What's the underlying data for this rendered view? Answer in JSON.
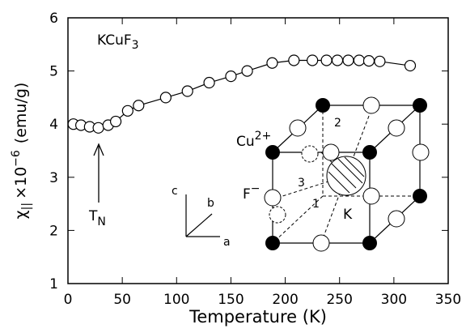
{
  "chart_data": {
    "type": "line",
    "xlabel": "Temperature (K)",
    "ylabel": {
      "symbol": "χ",
      "subscript": "||",
      "factor": "×10",
      "exponent": "−6",
      "unit": "(emu/g)"
    },
    "annotations": {
      "compound": {
        "text": "KCuF",
        "subscript": "3"
      },
      "transition": {
        "text": "T",
        "subscript": "N"
      }
    },
    "inset": {
      "cu": {
        "text": "Cu",
        "superscript": "2+"
      },
      "f": {
        "text": "F",
        "superscript": "−"
      },
      "k": "K",
      "sites": [
        "1",
        "2",
        "3"
      ],
      "axes": [
        "a",
        "b",
        "c"
      ]
    },
    "x": [
      5,
      12,
      20,
      28,
      37,
      44,
      55,
      65,
      90,
      110,
      130,
      150,
      165,
      188,
      208,
      225,
      238,
      248,
      258,
      268,
      277,
      287,
      315
    ],
    "values": [
      4.0,
      3.98,
      3.95,
      3.93,
      3.98,
      4.05,
      4.25,
      4.35,
      4.5,
      4.62,
      4.78,
      4.9,
      5.0,
      5.15,
      5.2,
      5.2,
      5.2,
      5.2,
      5.2,
      5.2,
      5.19,
      5.18,
      5.1
    ],
    "color": "#000000",
    "marker": "circle",
    "xlim": [
      0,
      350
    ],
    "xticks": [
      0,
      50,
      100,
      150,
      200,
      250,
      300,
      350
    ],
    "ylim": [
      1,
      6
    ],
    "yticks": [
      1,
      2,
      3,
      4,
      5,
      6
    ]
  }
}
